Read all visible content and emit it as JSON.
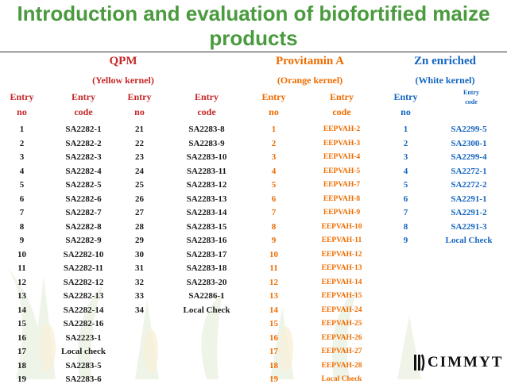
{
  "title": "Introduction and evaluation of biofortified maize products",
  "groups": {
    "qpm": {
      "title": "QPM",
      "subtitle": "(Yellow kernel)"
    },
    "provitamin": {
      "title": "Provitamin A",
      "subtitle": "(Orange kernel)"
    },
    "zn": {
      "title": "Zn enriched",
      "subtitle": "(White kernel)"
    }
  },
  "headers": {
    "entry": "Entry",
    "no": "no",
    "code": "code"
  },
  "qpm_col1": [
    [
      "1",
      "SA2282-1"
    ],
    [
      "2",
      "SA2282-2"
    ],
    [
      "3",
      "SA2282-3"
    ],
    [
      "4",
      "SA2282-4"
    ],
    [
      "5",
      "SA2282-5"
    ],
    [
      "6",
      "SA2282-6"
    ],
    [
      "7",
      "SA2282-7"
    ],
    [
      "8",
      "SA2282-8"
    ],
    [
      "9",
      "SA2282-9"
    ],
    [
      "10",
      "SA2282-10"
    ],
    [
      "11",
      "SA2282-11"
    ],
    [
      "12",
      "SA2282-12"
    ],
    [
      "13",
      "SA2282-13"
    ],
    [
      "14",
      "SA2282-14"
    ],
    [
      "15",
      "SA2282-16"
    ],
    [
      "16",
      "SA2223-1"
    ],
    [
      "17",
      "Local check"
    ],
    [
      "18",
      "SA2283-5"
    ],
    [
      "19",
      "SA2283-6"
    ]
  ],
  "qpm_col2": [
    [
      "21",
      "SA2283-8"
    ],
    [
      "22",
      "SA2283-9"
    ],
    [
      "23",
      "SA2283-10"
    ],
    [
      "24",
      "SA2283-11"
    ],
    [
      "25",
      "SA2283-12"
    ],
    [
      "26",
      "SA2283-13"
    ],
    [
      "27",
      "SA2283-14"
    ],
    [
      "28",
      "SA2283-15"
    ],
    [
      "29",
      "SA2283-16"
    ],
    [
      "30",
      "SA2283-17"
    ],
    [
      "31",
      "SA2283-18"
    ],
    [
      "32",
      "SA2283-20"
    ],
    [
      "33",
      "SA2286-1"
    ],
    [
      "34",
      "Local Check"
    ]
  ],
  "provitamin": [
    [
      "1",
      "EEPVAH-2"
    ],
    [
      "2",
      "EEPVAH-3"
    ],
    [
      "3",
      "EEPVAH-4"
    ],
    [
      "4",
      "EEPVAH-5"
    ],
    [
      "5",
      "EEPVAH-7"
    ],
    [
      "6",
      "EEPVAH-8"
    ],
    [
      "7",
      "EEPVAH-9"
    ],
    [
      "8",
      "EEPVAH-10"
    ],
    [
      "9",
      "EEPVAH-11"
    ],
    [
      "10",
      "EEPVAH-12"
    ],
    [
      "11",
      "EEPVAH-13"
    ],
    [
      "12",
      "EEPVAH-14"
    ],
    [
      "13",
      "EEPVAH-15"
    ],
    [
      "14",
      "EEPVAH-24"
    ],
    [
      "15",
      "EEPVAH-25"
    ],
    [
      "16",
      "EEPVAH-26"
    ],
    [
      "17",
      "EEPVAH-27"
    ],
    [
      "18",
      "EEPVAH-28"
    ],
    [
      "19",
      "Local Check"
    ]
  ],
  "zn": [
    [
      "1",
      "SA2299-5"
    ],
    [
      "2",
      "SA2300-1"
    ],
    [
      "3",
      "SA2299-4"
    ],
    [
      "4",
      "SA2272-1"
    ],
    [
      "5",
      "SA2272-2"
    ],
    [
      "6",
      "SA2291-1"
    ],
    [
      "7",
      "SA2291-2"
    ],
    [
      "8",
      "SA2291-3"
    ],
    [
      "9",
      "Local Check"
    ]
  ],
  "logo": {
    "text": "CIMMYT",
    "mark": "®"
  },
  "colors": {
    "title": "#4a9a3e",
    "qpm": "#c62828",
    "provitamin": "#ef6c00",
    "zn": "#1565c0"
  }
}
